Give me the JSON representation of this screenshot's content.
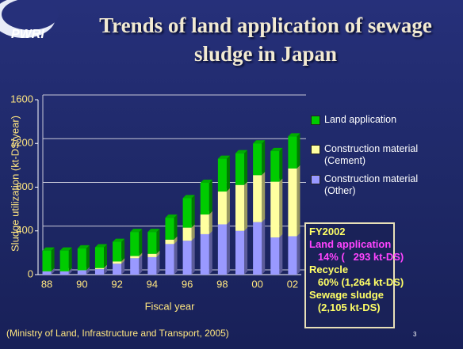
{
  "chart_data": {
    "type": "stacked_bar",
    "title": "Trends of land application of sewage sludge in Japan",
    "x_label": "Fiscal year",
    "y_label": "Sludge utilization (kt-DS/year)",
    "categories": [
      "88",
      null,
      "90",
      null,
      "92",
      null,
      "94",
      null,
      "96",
      null,
      "98",
      null,
      "00",
      null,
      "02"
    ],
    "series": [
      {
        "name": "Construction material (Other)",
        "color": "#9999ff",
        "values": [
          30,
          30,
          40,
          50,
          100,
          150,
          160,
          280,
          310,
          370,
          460,
          400,
          480,
          340,
          351
        ]
      },
      {
        "name": "Construction material (Cement)",
        "color": "#ffffa0",
        "values": [
          0,
          0,
          0,
          10,
          20,
          20,
          30,
          40,
          120,
          180,
          300,
          420,
          430,
          510,
          620
        ]
      },
      {
        "name": "Land application",
        "color": "#00cc00",
        "values": [
          190,
          190,
          200,
          190,
          180,
          220,
          200,
          200,
          270,
          290,
          300,
          290,
          290,
          280,
          293
        ]
      }
    ],
    "ylim": [
      0,
      1600
    ],
    "yticks": [
      0,
      400,
      800,
      1200,
      1600
    ],
    "grid": true,
    "legend": "right",
    "info_box": [
      "FY2002",
      "Land application",
      "   14% (   293 kt-DS)",
      "Recycle",
      "   60% (1,264 kt-DS)",
      "Sewage sludge",
      "   (2,105 kt-DS)"
    ],
    "source": "(Ministry of Land, Infrastructure and Transport, 2005)"
  },
  "logo": "PWRI",
  "page_number": "3"
}
